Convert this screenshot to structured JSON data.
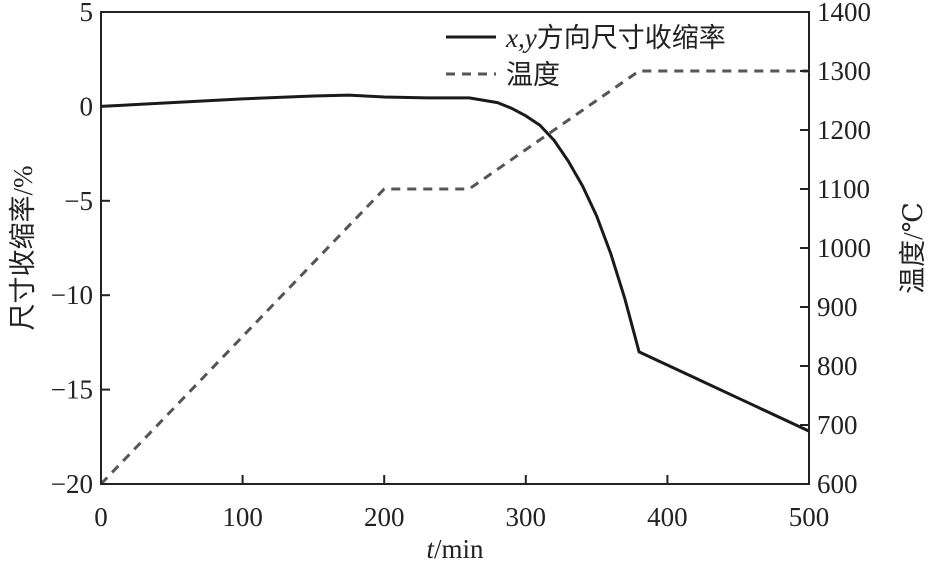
{
  "chart_data": {
    "type": "line",
    "title": "",
    "x_axis": {
      "label_italic": "t",
      "label_rest": "/min",
      "range": [
        0,
        500
      ],
      "ticks": [
        0,
        100,
        200,
        300,
        400,
        500
      ],
      "tick_labels": [
        "0",
        "100",
        "200",
        "300",
        "400",
        "500"
      ]
    },
    "y_axis_left": {
      "label": "尺寸收缩率/%",
      "range": [
        -20,
        5
      ],
      "ticks": [
        5,
        0,
        -5,
        -10,
        -15,
        -20
      ],
      "tick_labels": [
        "5",
        "0",
        "−5",
        "−10",
        "−15",
        "−20"
      ]
    },
    "y_axis_right": {
      "label": "温度/℃",
      "range": [
        600,
        1400
      ],
      "ticks": [
        1400,
        1300,
        1200,
        1100,
        1000,
        900,
        800,
        700,
        600
      ],
      "tick_labels": [
        "1400",
        "1300",
        "1200",
        "1100",
        "1000",
        "900",
        "800",
        "700",
        "600"
      ]
    },
    "grid": false,
    "legend_position": "top-right",
    "series": [
      {
        "name": "x,y方向尺寸收缩率",
        "name_italic": "x,y",
        "name_rest": "方向尺寸收缩率",
        "axis": "left",
        "style": "solid",
        "color": "#1a1a1a",
        "x": [
          0,
          50,
          100,
          150,
          175,
          200,
          230,
          260,
          280,
          290,
          300,
          310,
          320,
          330,
          340,
          350,
          360,
          370,
          380,
          420,
          460,
          500
        ],
        "y": [
          0,
          0.2,
          0.4,
          0.55,
          0.6,
          0.5,
          0.45,
          0.45,
          0.2,
          -0.1,
          -0.5,
          -1.0,
          -1.8,
          -2.9,
          -4.2,
          -5.8,
          -7.8,
          -10.2,
          -13.0,
          -14.4,
          -15.8,
          -17.2
        ]
      },
      {
        "name": "温度",
        "axis": "right",
        "style": "dashed",
        "color": "#555555",
        "x": [
          0,
          200,
          260,
          380,
          500
        ],
        "y": [
          600,
          1100,
          1100,
          1300,
          1300
        ]
      }
    ]
  }
}
